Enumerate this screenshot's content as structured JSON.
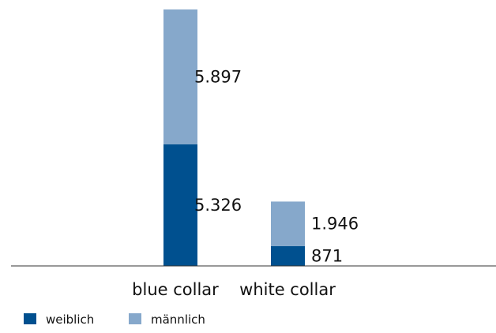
{
  "chart_data": {
    "type": "bar",
    "stacked": true,
    "categories": [
      "blue collar",
      "white collar"
    ],
    "series": [
      {
        "name": "weiblich",
        "values": [
          5326,
          871
        ],
        "labels": [
          "5.326",
          "871"
        ],
        "color": "#00508f"
      },
      {
        "name": "männlich",
        "values": [
          5897,
          1946
        ],
        "labels": [
          "5.897",
          "1.946"
        ],
        "color": "#86a8cb"
      }
    ],
    "ylim": [
      0,
      11223
    ],
    "grid": false,
    "legend_position": "bottom-left",
    "title": "",
    "xlabel": "",
    "ylabel": ""
  }
}
